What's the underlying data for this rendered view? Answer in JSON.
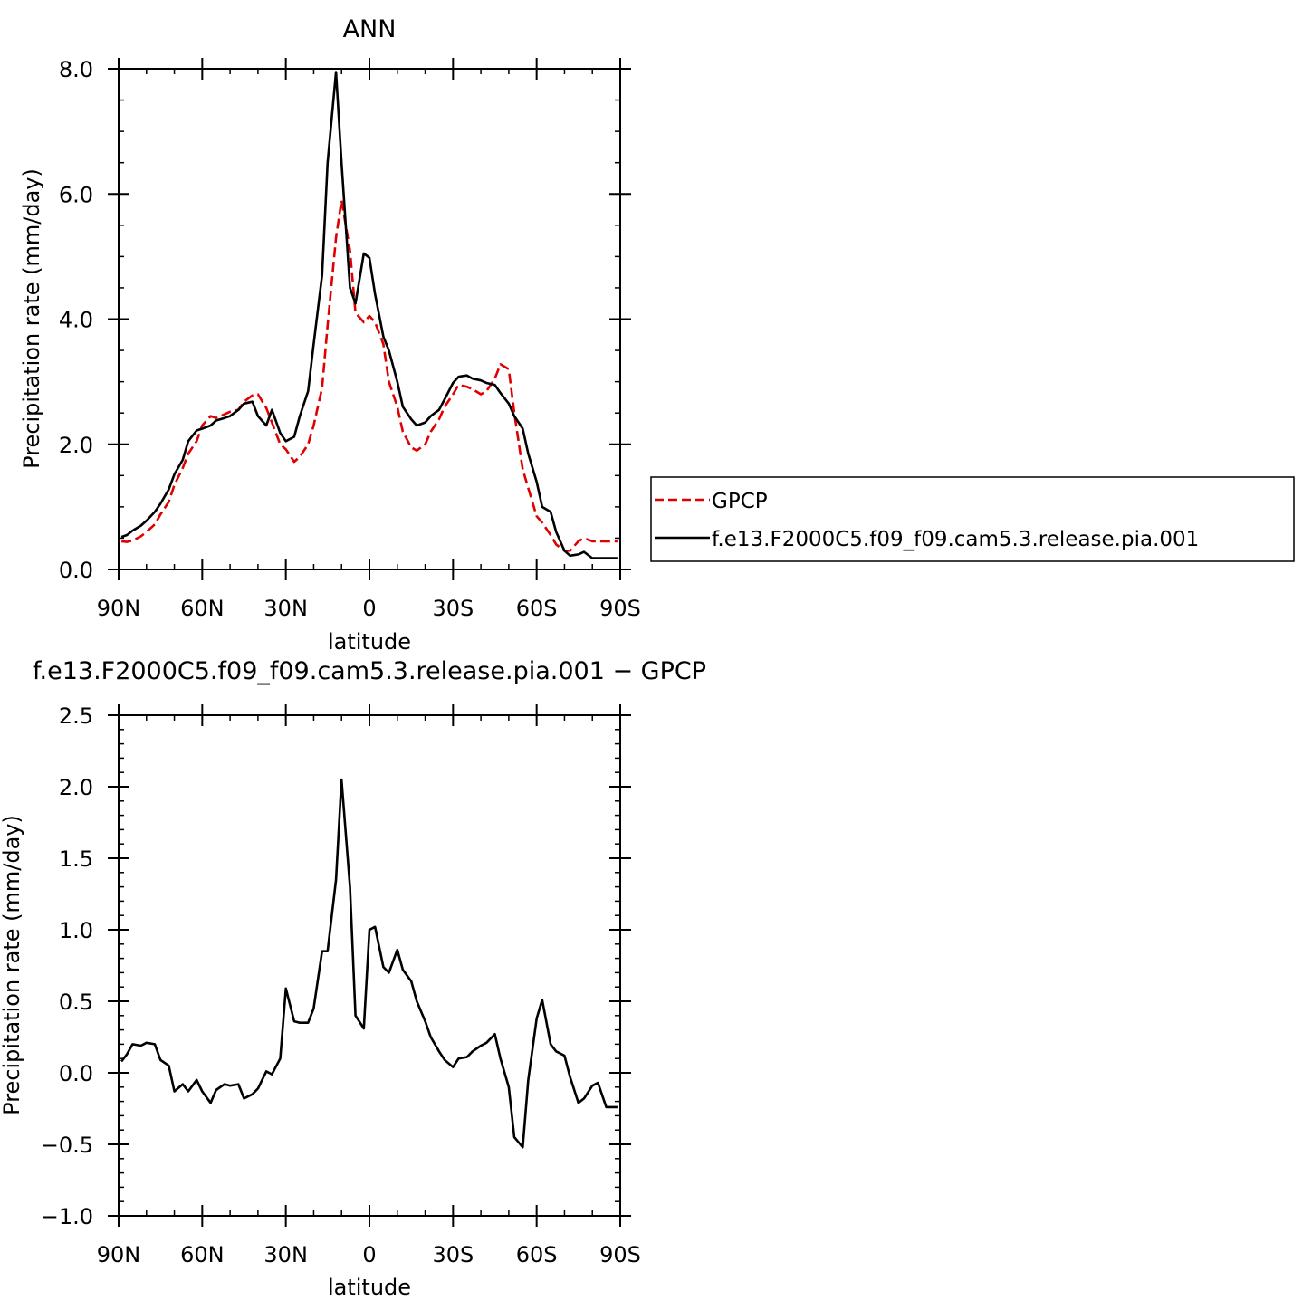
{
  "chart_data": [
    {
      "type": "line",
      "title": "ANN",
      "xlabel": "latitude",
      "ylabel": "Precipitation rate (mm/day)",
      "xlim": [
        90,
        -90
      ],
      "ylim": [
        0,
        8
      ],
      "x_ticks": [
        {
          "value": 90,
          "label": "90N"
        },
        {
          "value": 60,
          "label": "60N"
        },
        {
          "value": 30,
          "label": "30N"
        },
        {
          "value": 0,
          "label": "0"
        },
        {
          "value": -30,
          "label": "30S"
        },
        {
          "value": -60,
          "label": "60S"
        },
        {
          "value": -90,
          "label": "90S"
        }
      ],
      "y_ticks": [
        {
          "value": 0,
          "label": "0.0"
        },
        {
          "value": 2,
          "label": "2.0"
        },
        {
          "value": 4,
          "label": "4.0"
        },
        {
          "value": 6,
          "label": "6.0"
        },
        {
          "value": 8,
          "label": "8.0"
        }
      ],
      "legend_position": "right",
      "series": [
        {
          "name": "GPCP",
          "color": "#e00000",
          "dash": "dashed",
          "x": [
            89,
            87,
            85,
            82,
            80,
            77,
            75,
            72,
            70,
            67,
            65,
            62,
            60,
            57,
            55,
            52,
            50,
            47,
            45,
            42,
            40,
            37,
            35,
            32,
            30,
            27,
            25,
            22,
            20,
            17,
            15,
            12,
            10,
            7,
            5,
            2,
            0,
            -2,
            -5,
            -7,
            -10,
            -12,
            -15,
            -17,
            -20,
            -22,
            -25,
            -27,
            -30,
            -32,
            -35,
            -37,
            -40,
            -42,
            -45,
            -47,
            -50,
            -52,
            -55,
            -57,
            -60,
            -62,
            -65,
            -67,
            -70,
            -72,
            -75,
            -77,
            -80,
            -82,
            -85,
            -87,
            -89
          ],
          "y": [
            0.45,
            0.44,
            0.46,
            0.53,
            0.6,
            0.72,
            0.88,
            1.08,
            1.35,
            1.62,
            1.85,
            2.05,
            2.3,
            2.45,
            2.42,
            2.48,
            2.52,
            2.55,
            2.68,
            2.78,
            2.8,
            2.58,
            2.35,
            2.0,
            1.92,
            1.72,
            1.8,
            2.0,
            2.3,
            2.9,
            3.9,
            5.3,
            5.9,
            5.1,
            4.1,
            3.95,
            4.05,
            3.95,
            3.6,
            3.0,
            2.6,
            2.2,
            1.95,
            1.9,
            2.0,
            2.2,
            2.4,
            2.6,
            2.8,
            2.95,
            2.92,
            2.88,
            2.8,
            2.85,
            3.05,
            3.28,
            3.2,
            2.5,
            1.6,
            1.3,
            0.85,
            0.75,
            0.55,
            0.4,
            0.3,
            0.3,
            0.45,
            0.5,
            0.45,
            0.45,
            0.45,
            0.45,
            0.45
          ]
        },
        {
          "name": "f.e13.F2000C5.f09_f09.cam5.3.release.pia.001",
          "color": "#000000",
          "dash": "solid",
          "x": [
            89,
            87,
            85,
            82,
            80,
            77,
            75,
            72,
            70,
            67,
            65,
            62,
            60,
            57,
            55,
            52,
            50,
            47,
            45,
            42,
            40,
            37,
            35,
            32,
            30,
            27,
            25,
            22,
            20,
            17,
            15,
            12,
            10,
            7,
            5,
            2,
            0,
            -2,
            -5,
            -7,
            -10,
            -12,
            -15,
            -17,
            -20,
            -22,
            -25,
            -27,
            -30,
            -32,
            -35,
            -37,
            -40,
            -42,
            -45,
            -47,
            -50,
            -52,
            -55,
            -57,
            -60,
            -62,
            -65,
            -67,
            -70,
            -72,
            -75,
            -77,
            -80,
            -82,
            -85,
            -87,
            -89
          ],
          "y": [
            0.52,
            0.55,
            0.62,
            0.7,
            0.78,
            0.92,
            1.05,
            1.28,
            1.52,
            1.75,
            2.05,
            2.22,
            2.25,
            2.3,
            2.38,
            2.42,
            2.45,
            2.55,
            2.65,
            2.68,
            2.45,
            2.3,
            2.55,
            2.18,
            2.05,
            2.12,
            2.45,
            2.85,
            3.6,
            4.7,
            6.5,
            7.95,
            6.5,
            4.5,
            4.25,
            5.05,
            4.98,
            4.4,
            3.72,
            3.5,
            3.0,
            2.6,
            2.4,
            2.3,
            2.35,
            2.45,
            2.55,
            2.72,
            2.98,
            3.08,
            3.1,
            3.05,
            3.02,
            2.98,
            2.95,
            2.82,
            2.65,
            2.45,
            2.25,
            1.85,
            1.4,
            1.0,
            0.92,
            0.6,
            0.3,
            0.22,
            0.24,
            0.28,
            0.18,
            0.18,
            0.18,
            0.18,
            0.18
          ]
        }
      ]
    },
    {
      "type": "line",
      "title": "f.e13.F2000C5.f09_f09.cam5.3.release.pia.001 − GPCP",
      "xlabel": "latitude",
      "ylabel": "Precipitation rate (mm/day)",
      "xlim": [
        90,
        -90
      ],
      "ylim": [
        -1.0,
        2.5
      ],
      "x_ticks": [
        {
          "value": 90,
          "label": "90N"
        },
        {
          "value": 60,
          "label": "60N"
        },
        {
          "value": 30,
          "label": "30N"
        },
        {
          "value": 0,
          "label": "0"
        },
        {
          "value": -30,
          "label": "30S"
        },
        {
          "value": -60,
          "label": "60S"
        },
        {
          "value": -90,
          "label": "90S"
        }
      ],
      "y_ticks": [
        {
          "value": -1.0,
          "label": "−1.0"
        },
        {
          "value": -0.5,
          "label": "−0.5"
        },
        {
          "value": 0.0,
          "label": "0.0"
        },
        {
          "value": 0.5,
          "label": "0.5"
        },
        {
          "value": 1.0,
          "label": "1.0"
        },
        {
          "value": 1.5,
          "label": "1.5"
        },
        {
          "value": 2.0,
          "label": "2.0"
        },
        {
          "value": 2.5,
          "label": "2.5"
        }
      ],
      "series": [
        {
          "color": "#000000",
          "dash": "solid",
          "x": [
            89,
            87,
            85,
            82,
            80,
            77,
            75,
            72,
            70,
            67,
            65,
            62,
            60,
            57,
            55,
            52,
            50,
            47,
            45,
            42,
            40,
            37,
            35,
            32,
            30,
            27,
            25,
            22,
            20,
            17,
            15,
            12,
            10,
            7,
            5,
            2,
            0,
            -2,
            -5,
            -7,
            -10,
            -12,
            -15,
            -17,
            -20,
            -22,
            -25,
            -27,
            -30,
            -32,
            -35,
            -37,
            -40,
            -42,
            -45,
            -47,
            -50,
            -52,
            -55,
            -57,
            -60,
            -62,
            -65,
            -67,
            -70,
            -72,
            -75,
            -77,
            -80,
            -82,
            -85,
            -87,
            -89
          ],
          "y": [
            0.08,
            0.13,
            0.2,
            0.19,
            0.21,
            0.2,
            0.09,
            0.05,
            -0.13,
            -0.08,
            -0.13,
            -0.05,
            -0.13,
            -0.21,
            -0.12,
            -0.08,
            -0.09,
            -0.08,
            -0.18,
            -0.15,
            -0.11,
            0.01,
            -0.01,
            0.1,
            0.59,
            0.36,
            0.35,
            0.35,
            0.45,
            0.85,
            0.85,
            1.35,
            2.05,
            1.3,
            0.4,
            0.31,
            1.0,
            1.02,
            0.74,
            0.7,
            0.86,
            0.72,
            0.64,
            0.5,
            0.36,
            0.25,
            0.15,
            0.09,
            0.04,
            0.1,
            0.11,
            0.15,
            0.19,
            0.21,
            0.27,
            0.1,
            -0.1,
            -0.45,
            -0.52,
            -0.05,
            0.38,
            0.51,
            0.2,
            0.15,
            0.12,
            -0.03,
            -0.21,
            -0.18,
            -0.09,
            -0.07,
            -0.24,
            -0.24,
            -0.24
          ]
        }
      ]
    }
  ]
}
